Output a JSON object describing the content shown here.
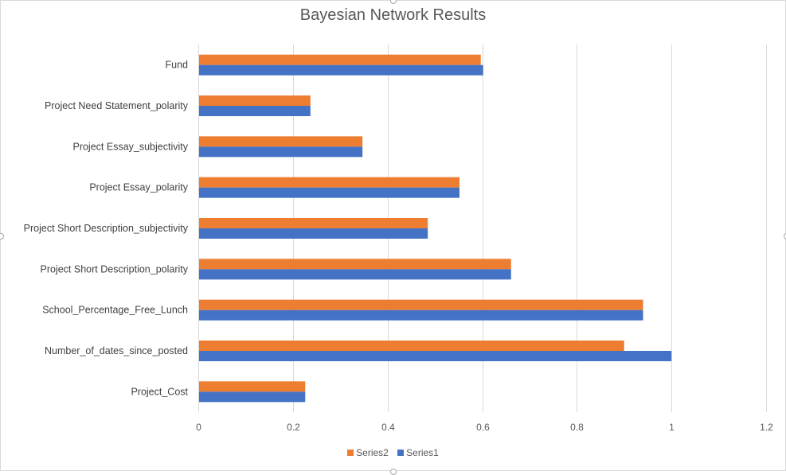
{
  "chart_data": {
    "type": "bar",
    "orientation": "horizontal",
    "title": "Bayesian Network Results",
    "xlabel": "",
    "ylabel": "",
    "categories": [
      "Project_Cost",
      "Number_of_dates_since_posted",
      "School_Percentage_Free_Lunch",
      "Project Short Description_polarity",
      "Project Short Description_subjectivity",
      "Project Essay_polarity",
      "Project Essay_subjectivity",
      "Project Need Statement_polarity",
      "Fund"
    ],
    "series": [
      {
        "name": "Series1",
        "color": "#4472C4",
        "values": [
          0.226,
          1.0,
          0.94,
          0.661,
          0.485,
          0.552,
          0.347,
          0.237,
          0.602
        ]
      },
      {
        "name": "Series2",
        "color": "#ED7D31",
        "values": [
          0.226,
          0.9,
          0.94,
          0.661,
          0.485,
          0.552,
          0.347,
          0.237,
          0.597
        ]
      }
    ],
    "xlim": [
      0,
      1.2
    ],
    "xticks": [
      "0",
      "0.2",
      "0.4",
      "0.6",
      "0.8",
      "1",
      "1.2"
    ],
    "grid": "vertical",
    "legend": {
      "position": "bottom",
      "order": [
        "Series2",
        "Series1"
      ]
    }
  }
}
